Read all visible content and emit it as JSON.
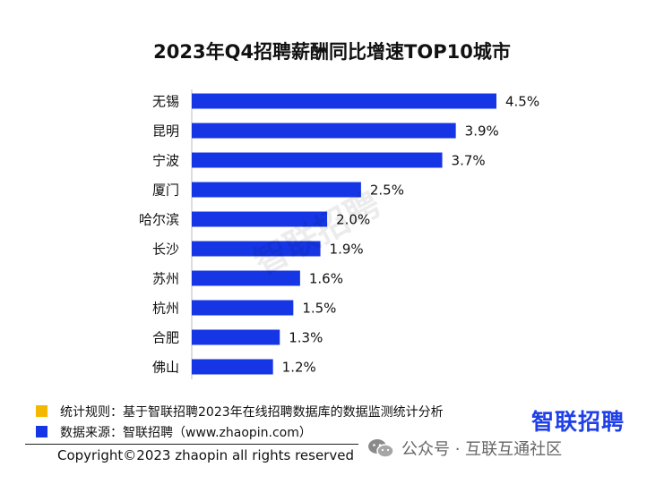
{
  "colors": {
    "bar": "#1636e6",
    "rule_swatch": "#f5b800",
    "source_swatch": "#1636e6",
    "brand": "#1f3fe8"
  },
  "chart_data": {
    "type": "bar",
    "orientation": "horizontal",
    "title": "2023年Q4招聘薪酬同比增速TOP10城市",
    "categories": [
      "无锡",
      "昆明",
      "宁波",
      "厦门",
      "哈尔滨",
      "长沙",
      "苏州",
      "杭州",
      "合肥",
      "佛山"
    ],
    "values": [
      4.5,
      3.9,
      3.7,
      2.5,
      2.0,
      1.9,
      1.6,
      1.5,
      1.3,
      1.2
    ],
    "value_labels": [
      "4.5%",
      "3.9%",
      "3.7%",
      "2.5%",
      "2.0%",
      "1.9%",
      "1.6%",
      "1.5%",
      "1.3%",
      "1.2%"
    ],
    "unit": "%",
    "xlim": [
      0,
      4.5
    ],
    "xlabel": "",
    "ylabel": "",
    "grid": false,
    "legend": "none"
  },
  "watermark": "智联招聘",
  "notes": {
    "rule": "统计规则：基于智联招聘2023年在线招聘数据库的数据监测统计分析",
    "source": "数据来源：智联招聘（www.zhaopin.com）"
  },
  "brand": "智联招聘",
  "copyright": "Copyright©2023 zhaopin all rights reserved",
  "wechat": {
    "icon": "wechat-icon",
    "text": "公众号 · 互联互通社区"
  }
}
